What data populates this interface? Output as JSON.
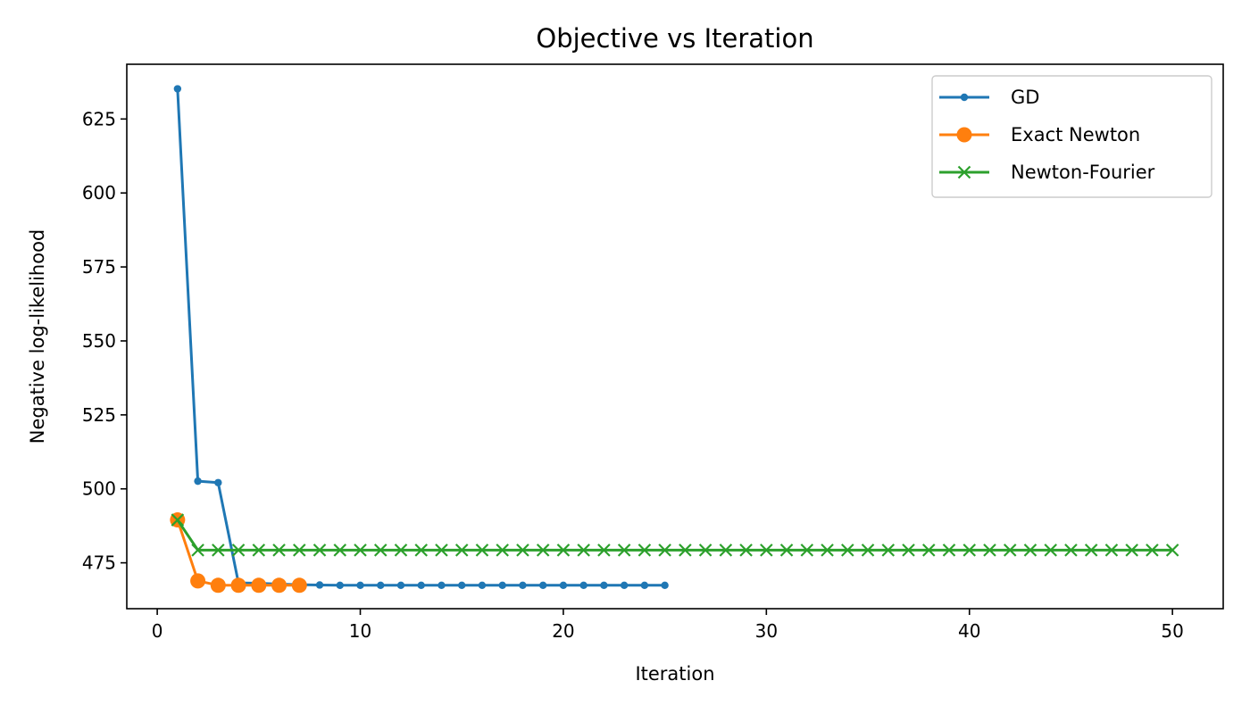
{
  "chart_data": {
    "type": "line",
    "title": "Objective vs Iteration",
    "xlabel": "Iteration",
    "ylabel": "Negative log-likelihood",
    "xlim": [
      -1.5,
      52.5
    ],
    "ylim": [
      459.5,
      643.5
    ],
    "xticks": [
      0,
      10,
      20,
      30,
      40,
      50
    ],
    "yticks": [
      475,
      500,
      525,
      550,
      575,
      600,
      625
    ],
    "grid": false,
    "legend_position": "top-right",
    "series": [
      {
        "name": "GD",
        "color": "#1f77b4",
        "marker": "dot",
        "x": [
          1,
          2,
          3,
          4,
          5,
          6,
          7,
          8,
          9,
          10,
          11,
          12,
          13,
          14,
          15,
          16,
          17,
          18,
          19,
          20,
          21,
          22,
          23,
          24,
          25
        ],
        "y": [
          635.2,
          502.6,
          502.1,
          468.2,
          468.1,
          467.8,
          467.6,
          467.5,
          467.4,
          467.4,
          467.4,
          467.4,
          467.4,
          467.4,
          467.4,
          467.4,
          467.4,
          467.4,
          467.4,
          467.4,
          467.4,
          467.4,
          467.4,
          467.4,
          467.4
        ]
      },
      {
        "name": "Exact Newton",
        "color": "#ff7f0e",
        "marker": "circle",
        "x": [
          1,
          2,
          3,
          4,
          5,
          6,
          7
        ],
        "y": [
          489.5,
          468.9,
          467.4,
          467.4,
          467.4,
          467.4,
          467.4
        ]
      },
      {
        "name": "Newton-Fourier",
        "color": "#2ca02c",
        "marker": "x",
        "x": [
          1,
          2,
          3,
          4,
          5,
          6,
          7,
          8,
          9,
          10,
          11,
          12,
          13,
          14,
          15,
          16,
          17,
          18,
          19,
          20,
          21,
          22,
          23,
          24,
          25,
          26,
          27,
          28,
          29,
          30,
          31,
          32,
          33,
          34,
          35,
          36,
          37,
          38,
          39,
          40,
          41,
          42,
          43,
          44,
          45,
          46,
          47,
          48,
          49,
          50
        ],
        "y": [
          489.5,
          479.3,
          479.3,
          479.3,
          479.3,
          479.3,
          479.3,
          479.3,
          479.3,
          479.3,
          479.3,
          479.3,
          479.3,
          479.3,
          479.3,
          479.3,
          479.3,
          479.3,
          479.3,
          479.3,
          479.3,
          479.3,
          479.3,
          479.3,
          479.3,
          479.3,
          479.3,
          479.3,
          479.3,
          479.3,
          479.3,
          479.3,
          479.3,
          479.3,
          479.3,
          479.3,
          479.3,
          479.3,
          479.3,
          479.3,
          479.3,
          479.3,
          479.3,
          479.3,
          479.3,
          479.3,
          479.3,
          479.3,
          479.3,
          479.3
        ]
      }
    ]
  }
}
